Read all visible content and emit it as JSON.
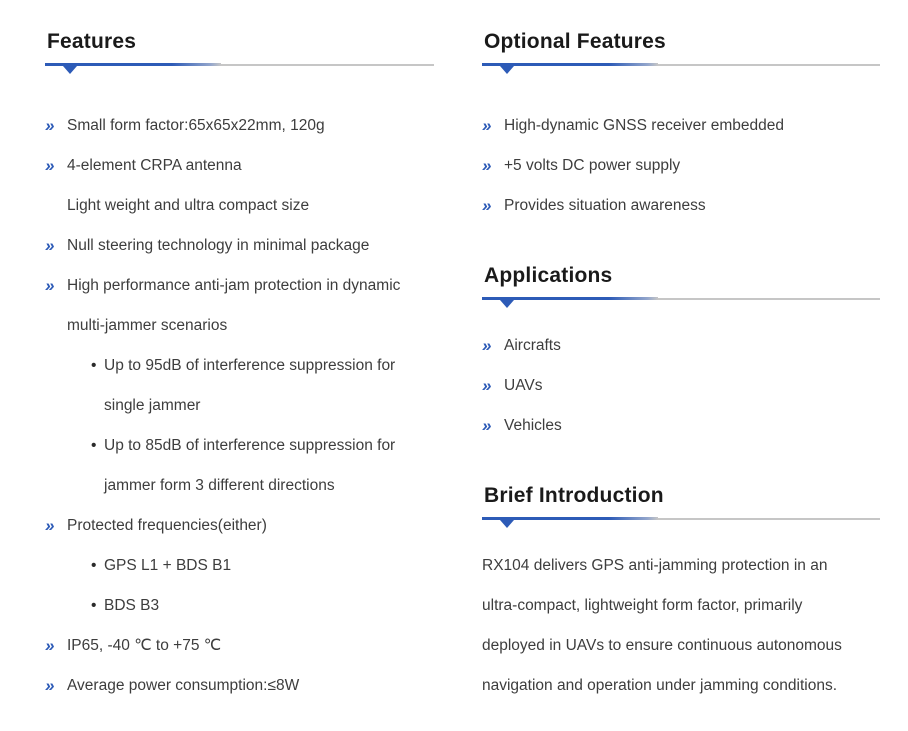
{
  "colors": {
    "accent_blue": "#2d5bb7",
    "rule_gray": "#c6c6c6",
    "heading_text": "#1a1a1a",
    "body_text": "#3d3d3d"
  },
  "icons": {
    "chevron_bullet": "»",
    "dot_bullet": "•"
  },
  "sections": {
    "features": {
      "title": "Features",
      "items": [
        {
          "bullet": "chevron",
          "lines": [
            "Small form factor:65x65x22mm, 120g"
          ]
        },
        {
          "bullet": "chevron",
          "lines": [
            "4-element CRPA antenna",
            "Light weight and ultra compact size"
          ]
        },
        {
          "bullet": "chevron",
          "lines": [
            "Null steering technology in minimal package"
          ]
        },
        {
          "bullet": "chevron",
          "lines": [
            "High performance anti-jam protection in dynamic",
            "multi-jammer scenarios"
          ]
        },
        {
          "bullet": "dot",
          "lines": [
            "Up to 95dB of interference suppression for",
            "single jammer"
          ]
        },
        {
          "bullet": "dot",
          "lines": [
            "Up to 85dB of interference suppression for",
            "jammer form 3 different directions"
          ]
        },
        {
          "bullet": "chevron",
          "lines": [
            "Protected frequencies(either)"
          ]
        },
        {
          "bullet": "dot",
          "lines": [
            "GPS L1 + BDS B1"
          ]
        },
        {
          "bullet": "dot",
          "lines": [
            "BDS B3"
          ]
        },
        {
          "bullet": "chevron",
          "lines": [
            "IP65, -40 ℃ to +75 ℃"
          ]
        },
        {
          "bullet": "chevron",
          "lines": [
            "Average power consumption:≤8W"
          ]
        }
      ]
    },
    "optional_features": {
      "title": "Optional Features",
      "items": [
        {
          "bullet": "chevron",
          "lines": [
            "High-dynamic GNSS receiver embedded"
          ]
        },
        {
          "bullet": "chevron",
          "lines": [
            "+5 volts DC power supply"
          ]
        },
        {
          "bullet": "chevron",
          "lines": [
            "Provides situation awareness"
          ]
        }
      ]
    },
    "applications": {
      "title": "Applications",
      "items": [
        {
          "bullet": "chevron",
          "lines": [
            "Aircrafts"
          ]
        },
        {
          "bullet": "chevron",
          "lines": [
            "UAVs"
          ]
        },
        {
          "bullet": "chevron",
          "lines": [
            "Vehicles"
          ]
        }
      ]
    },
    "brief_introduction": {
      "title": "Brief Introduction",
      "paragraph_lines": [
        "RX104 delivers GPS anti-jamming protection in an",
        "ultra-compact, lightweight form factor, primarily",
        "deployed in UAVs to ensure continuous autonomous",
        "navigation and operation under jamming conditions."
      ]
    }
  }
}
